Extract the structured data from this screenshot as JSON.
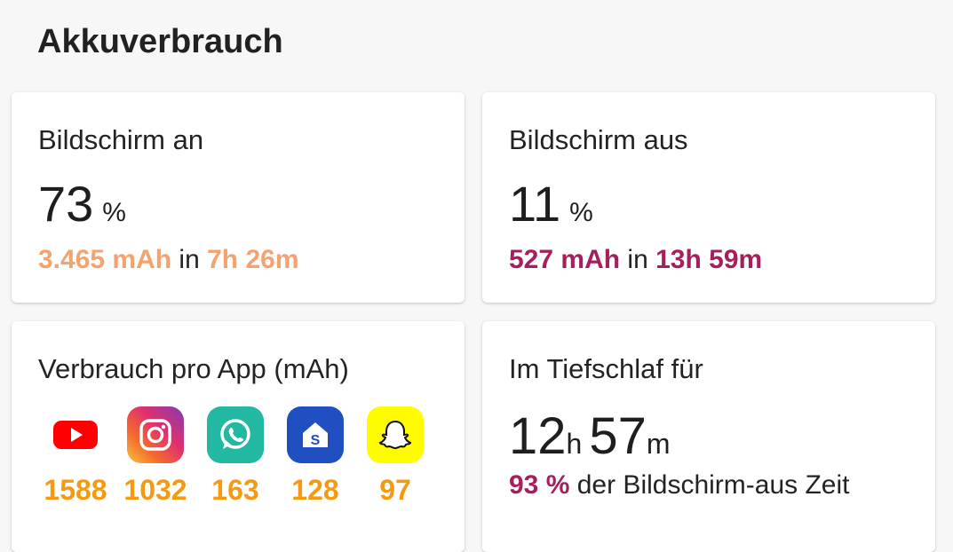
{
  "header": {
    "title": "Akkuverbrauch"
  },
  "screen_on": {
    "title": "Bildschirm an",
    "percent": "73",
    "percent_unit": "%",
    "mah": "3.465 mAh",
    "in_word": "in",
    "duration": "7h 26m"
  },
  "screen_off": {
    "title": "Bildschirm aus",
    "percent": "11",
    "percent_unit": "%",
    "mah": "527 mAh",
    "in_word": "in",
    "duration": "13h 59m"
  },
  "apps": {
    "title": "Verbrauch pro App (mAh)",
    "items": [
      {
        "name": "YouTube",
        "icon": "youtube-icon",
        "value": "1588"
      },
      {
        "name": "Instagram",
        "icon": "instagram-icon",
        "value": "1032"
      },
      {
        "name": "WhatsApp",
        "icon": "whatsapp-icon",
        "value": "163"
      },
      {
        "name": "Samsung App",
        "icon": "samsung-store-icon",
        "value": "128"
      },
      {
        "name": "Snapchat",
        "icon": "snapchat-icon",
        "value": "97"
      }
    ]
  },
  "deep_sleep": {
    "title": "Im Tiefschlaf für",
    "hours": "12",
    "hours_unit": "h",
    "minutes": "57",
    "minutes_unit": "m",
    "percent": "93 %",
    "suffix": "der Bildschirm-aus Zeit"
  },
  "colors": {
    "screen_on_accent": "#f4a36f",
    "screen_off_accent": "#a61f5d",
    "app_value": "#f59a10"
  }
}
